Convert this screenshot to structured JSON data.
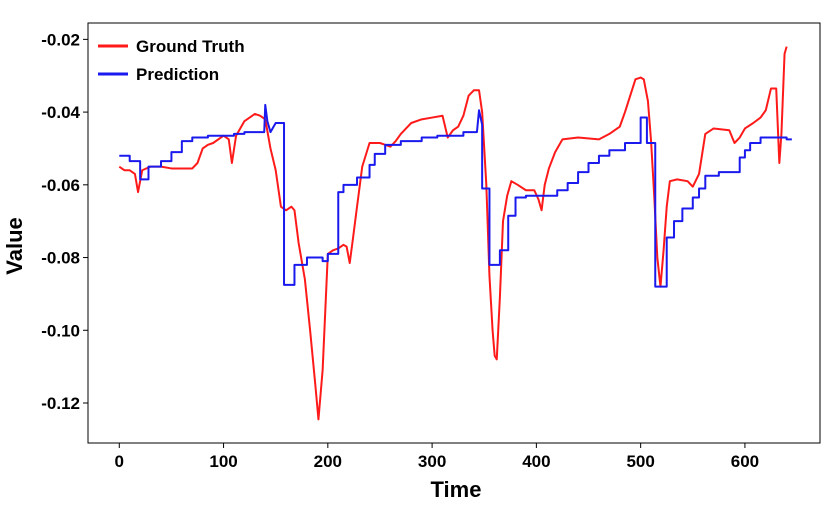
{
  "chart_data": {
    "type": "line",
    "title": "",
    "xlabel": "Time",
    "ylabel": "Value",
    "xlim": [
      -30,
      672
    ],
    "ylim": [
      -0.131,
      -0.0155
    ],
    "xticks": [
      0,
      100,
      200,
      300,
      400,
      500,
      600
    ],
    "xtick_labels": [
      "0",
      "100",
      "200",
      "300",
      "400",
      "500",
      "600"
    ],
    "yticks": [
      -0.12,
      -0.1,
      -0.08,
      -0.06,
      -0.04,
      -0.02
    ],
    "ytick_labels": [
      "-0.12",
      "-0.10",
      "-0.08",
      "-0.06",
      "-0.04",
      "-0.02"
    ],
    "grid": false,
    "legend_position": "top-left",
    "series": [
      {
        "name": "Ground Truth",
        "color": "#ff1a1a",
        "points": [
          [
            0,
            -0.055
          ],
          [
            5,
            -0.056
          ],
          [
            10,
            -0.056
          ],
          [
            15,
            -0.057
          ],
          [
            18,
            -0.062
          ],
          [
            22,
            -0.056
          ],
          [
            30,
            -0.055
          ],
          [
            40,
            -0.055
          ],
          [
            50,
            -0.0555
          ],
          [
            60,
            -0.0555
          ],
          [
            70,
            -0.0555
          ],
          [
            75,
            -0.054
          ],
          [
            80,
            -0.05
          ],
          [
            85,
            -0.049
          ],
          [
            90,
            -0.0485
          ],
          [
            100,
            -0.0465
          ],
          [
            105,
            -0.0475
          ],
          [
            108,
            -0.054
          ],
          [
            112,
            -0.0465
          ],
          [
            120,
            -0.0425
          ],
          [
            125,
            -0.0415
          ],
          [
            130,
            -0.0405
          ],
          [
            135,
            -0.041
          ],
          [
            140,
            -0.042
          ],
          [
            145,
            -0.05
          ],
          [
            150,
            -0.056
          ],
          [
            155,
            -0.066
          ],
          [
            160,
            -0.067
          ],
          [
            165,
            -0.066
          ],
          [
            168,
            -0.067
          ],
          [
            172,
            -0.076
          ],
          [
            178,
            -0.086
          ],
          [
            183,
            -0.1
          ],
          [
            188,
            -0.115
          ],
          [
            191,
            -0.1245
          ],
          [
            195,
            -0.111
          ],
          [
            200,
            -0.079
          ],
          [
            205,
            -0.078
          ],
          [
            210,
            -0.0775
          ],
          [
            215,
            -0.0765
          ],
          [
            218,
            -0.077
          ],
          [
            221,
            -0.0815
          ],
          [
            224,
            -0.075
          ],
          [
            228,
            -0.066
          ],
          [
            233,
            -0.055
          ],
          [
            240,
            -0.0485
          ],
          [
            250,
            -0.0485
          ],
          [
            260,
            -0.0495
          ],
          [
            265,
            -0.048
          ],
          [
            270,
            -0.046
          ],
          [
            275,
            -0.0445
          ],
          [
            280,
            -0.043
          ],
          [
            290,
            -0.042
          ],
          [
            300,
            -0.0415
          ],
          [
            310,
            -0.041
          ],
          [
            315,
            -0.047
          ],
          [
            320,
            -0.045
          ],
          [
            325,
            -0.044
          ],
          [
            330,
            -0.041
          ],
          [
            335,
            -0.0355
          ],
          [
            340,
            -0.034
          ],
          [
            345,
            -0.034
          ],
          [
            348,
            -0.04
          ],
          [
            352,
            -0.06
          ],
          [
            355,
            -0.085
          ],
          [
            358,
            -0.1
          ],
          [
            360,
            -0.107
          ],
          [
            362,
            -0.108
          ],
          [
            365,
            -0.091
          ],
          [
            368,
            -0.07
          ],
          [
            372,
            -0.063
          ],
          [
            376,
            -0.059
          ],
          [
            382,
            -0.06
          ],
          [
            390,
            -0.0615
          ],
          [
            398,
            -0.0615
          ],
          [
            402,
            -0.064
          ],
          [
            405,
            -0.067
          ],
          [
            408,
            -0.06
          ],
          [
            412,
            -0.0555
          ],
          [
            418,
            -0.051
          ],
          [
            425,
            -0.0475
          ],
          [
            440,
            -0.047
          ],
          [
            460,
            -0.0475
          ],
          [
            470,
            -0.046
          ],
          [
            480,
            -0.044
          ],
          [
            485,
            -0.04
          ],
          [
            490,
            -0.0355
          ],
          [
            495,
            -0.031
          ],
          [
            500,
            -0.0305
          ],
          [
            503,
            -0.031
          ],
          [
            507,
            -0.037
          ],
          [
            510,
            -0.048
          ],
          [
            513,
            -0.063
          ],
          [
            516,
            -0.08
          ],
          [
            519,
            -0.088
          ],
          [
            522,
            -0.078
          ],
          [
            525,
            -0.066
          ],
          [
            528,
            -0.059
          ],
          [
            535,
            -0.0585
          ],
          [
            545,
            -0.059
          ],
          [
            550,
            -0.0605
          ],
          [
            556,
            -0.057
          ],
          [
            562,
            -0.046
          ],
          [
            570,
            -0.0445
          ],
          [
            585,
            -0.045
          ],
          [
            590,
            -0.0485
          ],
          [
            595,
            -0.047
          ],
          [
            600,
            -0.0445
          ],
          [
            608,
            -0.043
          ],
          [
            615,
            -0.0415
          ],
          [
            620,
            -0.0395
          ],
          [
            625,
            -0.0335
          ],
          [
            630,
            -0.0335
          ],
          [
            633,
            -0.054
          ],
          [
            635,
            -0.046
          ],
          [
            638,
            -0.024
          ],
          [
            640,
            -0.022
          ]
        ]
      },
      {
        "name": "Prediction",
        "color": "#1a1aee",
        "points": [
          [
            0,
            -0.052
          ],
          [
            10,
            -0.052
          ],
          [
            10,
            -0.0535
          ],
          [
            20,
            -0.0535
          ],
          [
            20,
            -0.0585
          ],
          [
            28,
            -0.0585
          ],
          [
            28,
            -0.055
          ],
          [
            40,
            -0.055
          ],
          [
            40,
            -0.0535
          ],
          [
            50,
            -0.0535
          ],
          [
            50,
            -0.051
          ],
          [
            60,
            -0.051
          ],
          [
            60,
            -0.048
          ],
          [
            70,
            -0.048
          ],
          [
            70,
            -0.047
          ],
          [
            85,
            -0.047
          ],
          [
            85,
            -0.0465
          ],
          [
            110,
            -0.0465
          ],
          [
            110,
            -0.046
          ],
          [
            120,
            -0.046
          ],
          [
            120,
            -0.0455
          ],
          [
            139,
            -0.0455
          ],
          [
            140,
            -0.038
          ],
          [
            142,
            -0.0425
          ],
          [
            145,
            -0.0455
          ],
          [
            150,
            -0.043
          ],
          [
            158,
            -0.043
          ],
          [
            158,
            -0.0875
          ],
          [
            168,
            -0.0875
          ],
          [
            168,
            -0.082
          ],
          [
            180,
            -0.082
          ],
          [
            180,
            -0.08
          ],
          [
            195,
            -0.08
          ],
          [
            195,
            -0.081
          ],
          [
            200,
            -0.081
          ],
          [
            200,
            -0.079
          ],
          [
            210,
            -0.079
          ],
          [
            210,
            -0.062
          ],
          [
            215,
            -0.062
          ],
          [
            215,
            -0.06
          ],
          [
            228,
            -0.06
          ],
          [
            228,
            -0.058
          ],
          [
            240,
            -0.058
          ],
          [
            240,
            -0.0545
          ],
          [
            245,
            -0.0545
          ],
          [
            245,
            -0.0515
          ],
          [
            255,
            -0.0515
          ],
          [
            255,
            -0.049
          ],
          [
            270,
            -0.049
          ],
          [
            270,
            -0.048
          ],
          [
            290,
            -0.048
          ],
          [
            290,
            -0.047
          ],
          [
            305,
            -0.047
          ],
          [
            305,
            -0.0465
          ],
          [
            330,
            -0.0465
          ],
          [
            330,
            -0.0455
          ],
          [
            343,
            -0.0455
          ],
          [
            345,
            -0.0395
          ],
          [
            348,
            -0.0435
          ],
          [
            348,
            -0.061
          ],
          [
            355,
            -0.061
          ],
          [
            355,
            -0.082
          ],
          [
            365,
            -0.082
          ],
          [
            365,
            -0.078
          ],
          [
            373,
            -0.078
          ],
          [
            373,
            -0.0685
          ],
          [
            380,
            -0.0685
          ],
          [
            380,
            -0.0635
          ],
          [
            390,
            -0.0635
          ],
          [
            390,
            -0.063
          ],
          [
            420,
            -0.063
          ],
          [
            420,
            -0.0615
          ],
          [
            430,
            -0.0615
          ],
          [
            430,
            -0.0595
          ],
          [
            440,
            -0.0595
          ],
          [
            440,
            -0.0565
          ],
          [
            450,
            -0.0565
          ],
          [
            450,
            -0.054
          ],
          [
            460,
            -0.054
          ],
          [
            460,
            -0.052
          ],
          [
            470,
            -0.052
          ],
          [
            470,
            -0.0505
          ],
          [
            485,
            -0.0505
          ],
          [
            485,
            -0.0485
          ],
          [
            500,
            -0.0485
          ],
          [
            500,
            -0.0415
          ],
          [
            506,
            -0.0415
          ],
          [
            506,
            -0.0485
          ],
          [
            514,
            -0.0485
          ],
          [
            514,
            -0.088
          ],
          [
            525,
            -0.088
          ],
          [
            525,
            -0.0745
          ],
          [
            532,
            -0.0745
          ],
          [
            532,
            -0.07
          ],
          [
            540,
            -0.07
          ],
          [
            540,
            -0.0665
          ],
          [
            550,
            -0.0665
          ],
          [
            550,
            -0.0635
          ],
          [
            556,
            -0.0635
          ],
          [
            556,
            -0.061
          ],
          [
            562,
            -0.061
          ],
          [
            562,
            -0.0575
          ],
          [
            575,
            -0.0575
          ],
          [
            575,
            -0.0565
          ],
          [
            595,
            -0.0565
          ],
          [
            595,
            -0.0525
          ],
          [
            600,
            -0.0525
          ],
          [
            600,
            -0.0505
          ],
          [
            605,
            -0.0505
          ],
          [
            605,
            -0.0485
          ],
          [
            615,
            -0.0485
          ],
          [
            615,
            -0.047
          ],
          [
            640,
            -0.047
          ],
          [
            640,
            -0.0475
          ],
          [
            645,
            -0.0475
          ]
        ]
      }
    ]
  }
}
